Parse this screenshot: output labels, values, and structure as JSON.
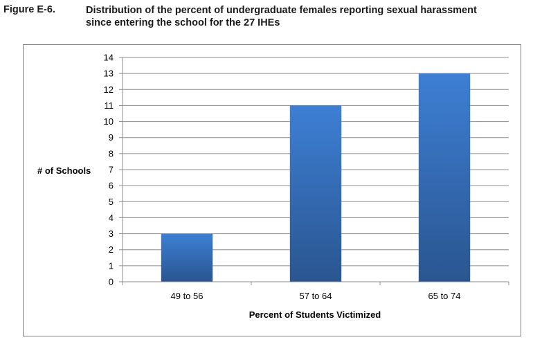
{
  "figure": {
    "label": "Figure E-6.",
    "title_line1": "Distribution of the percent of undergraduate females reporting sexual harassment",
    "title_line2": "since entering the school for the 27 IHEs"
  },
  "chart_data": {
    "type": "bar",
    "categories": [
      "49 to 56",
      "57 to 64",
      "65 to 74"
    ],
    "values": [
      3,
      11,
      13
    ],
    "xlabel": "Percent of Students Victimized",
    "ylabel": "# of Schools",
    "ylim": [
      0,
      14
    ],
    "y_ticks": [
      0,
      1,
      2,
      3,
      4,
      5,
      6,
      7,
      8,
      9,
      10,
      11,
      12,
      13,
      14
    ],
    "grid": true,
    "legend": "none",
    "bar_color_top": "#3d7fd4",
    "bar_color_bottom": "#2a5590"
  }
}
